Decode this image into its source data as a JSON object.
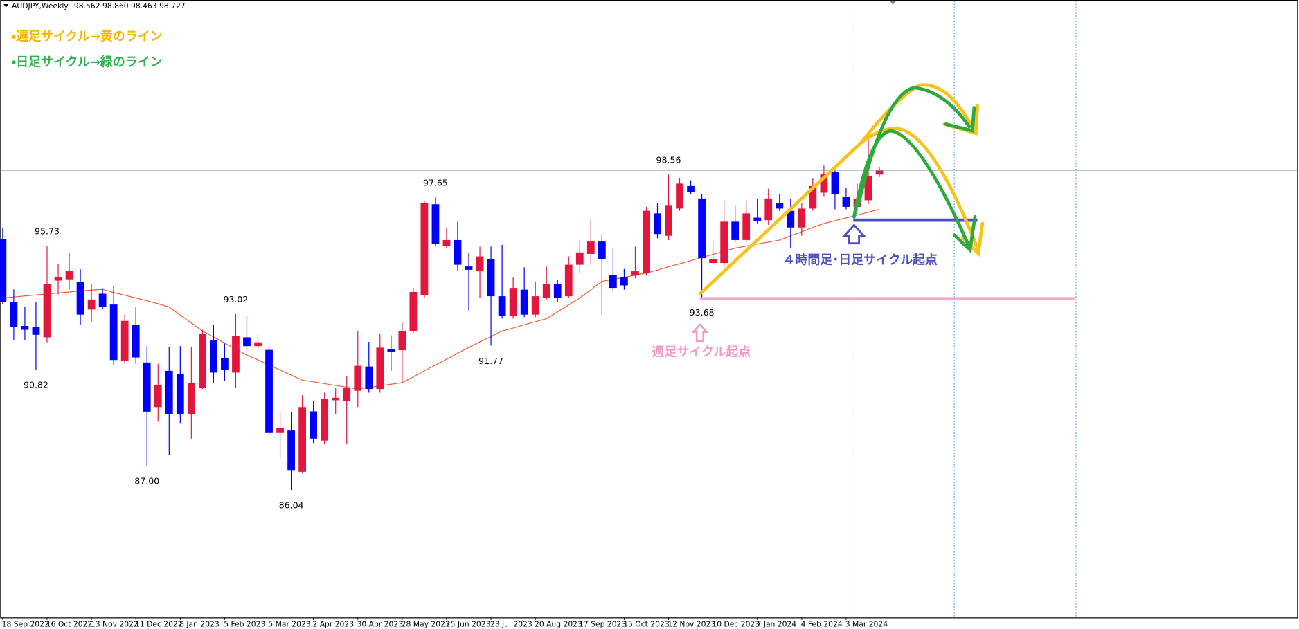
{
  "chart_data": {
    "type": "candlestick",
    "title": "AUDJPY,Weekly",
    "quote_labels": [
      "98.562",
      "98.860",
      "98.463",
      "98.727"
    ],
    "up_color": "#e3173e",
    "down_color": "#0000ff",
    "ylim": [
      80.98,
      105.49
    ],
    "grid": false,
    "categories": [
      "18 Sep 2022",
      null,
      null,
      null,
      "16 Oct 2022",
      null,
      null,
      null,
      "13 Nov 2022",
      null,
      null,
      null,
      "11 Dec 2022",
      null,
      null,
      null,
      "8 Jan 2023",
      null,
      null,
      null,
      "5 Feb 2023",
      null,
      null,
      null,
      "5 Mar 2023",
      null,
      null,
      null,
      "2 Apr 2023",
      null,
      null,
      null,
      "30 Apr 2023",
      null,
      null,
      null,
      "28 May 2023",
      null,
      null,
      null,
      "25 Jun 2023",
      null,
      null,
      null,
      "23 Jul 2023",
      null,
      null,
      null,
      "20 Aug 2023",
      null,
      null,
      null,
      "17 Sep 2023",
      null,
      null,
      null,
      "15 Oct 2023",
      null,
      null,
      null,
      "12 Nov 2023",
      null,
      null,
      null,
      "10 Dec 2023",
      null,
      null,
      null,
      "7 Jan 2024",
      null,
      null,
      null,
      "4 Feb 2024",
      null,
      null,
      null,
      "3 Mar 2024",
      null,
      null,
      null
    ],
    "open": [
      96.0,
      93.5,
      92.55,
      92.5,
      92.1,
      94.35,
      94.4,
      94.3,
      93.2,
      93.83,
      93.4,
      91.15,
      92.6,
      91.1,
      89.33,
      90.77,
      90.65,
      89.06,
      90.1,
      92.0,
      91.27,
      90.7,
      92.1,
      91.75,
      91.6,
      88.3,
      88.4,
      86.76,
      89.16,
      88.0,
      89.6,
      89.56,
      89.98,
      90.94,
      90.05,
      91.62,
      91.59,
      92.35,
      93.76,
      97.38,
      95.73,
      95.96,
      94.91,
      94.72,
      95.21,
      93.73,
      92.94,
      93.99,
      93.0,
      93.66,
      94.22,
      93.73,
      94.98,
      95.41,
      95.9,
      94.58,
      94.49,
      94.55,
      94.65,
      97.02,
      96.13,
      97.21,
      98.1,
      97.61,
      95.05,
      95.05,
      96.69,
      95.96,
      96.85,
      96.75,
      97.44,
      97.12,
      96.46,
      97.21,
      97.84,
      98.66,
      97.67,
      97.28,
      97.54,
      98.562
    ],
    "high": [
      96.46,
      94.0,
      93.3,
      93.5,
      95.73,
      95.0,
      95.45,
      94.8,
      94.2,
      94.05,
      94.15,
      93.0,
      93.3,
      91.75,
      91.05,
      91.7,
      91.75,
      91.7,
      92.4,
      92.58,
      91.85,
      93.02,
      92.95,
      92.2,
      91.75,
      89.13,
      89.13,
      89.8,
      89.56,
      89.9,
      90.1,
      90.54,
      92.35,
      91.92,
      92.25,
      92.18,
      92.68,
      94.06,
      97.5,
      97.65,
      96.46,
      96.69,
      95.47,
      95.7,
      95.7,
      95.77,
      94.49,
      94.88,
      94.32,
      94.91,
      94.39,
      95.31,
      95.96,
      96.79,
      96.2,
      95.64,
      94.81,
      95.7,
      97.28,
      97.44,
      98.56,
      98.43,
      98.33,
      97.77,
      95.96,
      97.54,
      97.35,
      97.51,
      97.61,
      98.0,
      97.77,
      97.61,
      97.44,
      98.43,
      98.92,
      98.72,
      98.04,
      98.2,
      99.97,
      98.86
    ],
    "low": [
      93.4,
      92.0,
      92.0,
      90.82,
      91.9,
      93.8,
      94.0,
      92.6,
      92.7,
      93.2,
      91.0,
      91.05,
      91.05,
      87.0,
      88.75,
      87.42,
      88.67,
      88.08,
      90.05,
      90.3,
      90.38,
      90.1,
      91.5,
      91.6,
      88.2,
      87.3,
      86.04,
      86.7,
      87.9,
      87.85,
      89.06,
      87.85,
      89.33,
      89.9,
      89.9,
      90.77,
      90.28,
      92.28,
      93.66,
      95.7,
      95.64,
      94.72,
      93.17,
      93.66,
      91.77,
      92.84,
      92.84,
      92.9,
      92.9,
      93.6,
      93.5,
      93.66,
      94.65,
      94.98,
      93.0,
      93.93,
      93.99,
      94.45,
      94.55,
      96.03,
      95.96,
      97.12,
      97.77,
      93.68,
      94.98,
      94.91,
      95.87,
      95.87,
      96.62,
      96.56,
      97.12,
      95.64,
      96.13,
      97.12,
      97.7,
      97.18,
      97.18,
      97.12,
      97.38,
      98.463
    ],
    "close": [
      93.5,
      92.5,
      92.4,
      92.2,
      94.2,
      94.5,
      94.75,
      93.0,
      93.6,
      93.3,
      91.2,
      92.75,
      91.3,
      89.15,
      90.2,
      89.06,
      89.06,
      90.3,
      92.25,
      90.7,
      90.8,
      92.15,
      91.75,
      91.9,
      88.3,
      88.5,
      86.83,
      89.33,
      88.08,
      89.66,
      89.7,
      90.1,
      90.97,
      90.05,
      91.69,
      91.53,
      92.35,
      93.9,
      97.44,
      95.8,
      95.96,
      94.98,
      94.78,
      95.31,
      93.73,
      92.94,
      94.06,
      93.0,
      93.73,
      94.22,
      93.66,
      94.98,
      95.47,
      95.9,
      95.21,
      94.06,
      94.16,
      94.72,
      97.12,
      96.2,
      97.35,
      98.2,
      97.87,
      95.24,
      95.21,
      96.69,
      95.96,
      97.02,
      96.72,
      97.61,
      97.21,
      96.46,
      97.21,
      98.1,
      98.59,
      97.77,
      97.28,
      97.61,
      98.49,
      98.727
    ],
    "ma": {
      "color": "#ff4a1c",
      "values": [
        93.66,
        93.7,
        93.74,
        93.78,
        93.82,
        93.86,
        93.9,
        93.94,
        93.97,
        94.0,
        93.88,
        93.77,
        93.66,
        93.55,
        93.43,
        93.3,
        92.98,
        92.67,
        92.35,
        92.11,
        91.87,
        91.63,
        91.4,
        91.2,
        91.0,
        90.8,
        90.6,
        90.4,
        90.33,
        90.26,
        90.19,
        90.12,
        90.05,
        90.11,
        90.17,
        90.24,
        90.3,
        90.53,
        90.77,
        91.0,
        91.23,
        91.47,
        91.7,
        91.92,
        92.13,
        92.35,
        92.47,
        92.6,
        92.72,
        92.84,
        93.11,
        93.39,
        93.66,
        93.99,
        94.32,
        94.4,
        94.48,
        94.57,
        94.65,
        94.77,
        94.9,
        95.02,
        95.14,
        95.27,
        95.39,
        95.52,
        95.64,
        95.72,
        95.8,
        95.88,
        95.96,
        96.13,
        96.29,
        96.46,
        96.62,
        96.73,
        96.84,
        96.95,
        97.07,
        97.18
      ]
    },
    "extremes": [
      {
        "value": 95.73,
        "label": "95.73"
      },
      {
        "value": 90.82,
        "label": "90.82"
      },
      {
        "value": 87,
        "label": "87.00"
      },
      {
        "value": 93.02,
        "label": "93.02"
      },
      {
        "value": 86.04,
        "label": "86.04"
      },
      {
        "value": 97.65,
        "label": "97.65"
      },
      {
        "value": 91.77,
        "label": "91.77"
      },
      {
        "value": 98.56,
        "label": "98.56"
      },
      {
        "value": 93.68,
        "label": "93.68"
      }
    ],
    "notes": {
      "weekly_line": "・週足サイクル→黄のライン",
      "daily_line": "・日足サイクル→緑のライン",
      "h4_start": "４時間足･日足サイクル起点",
      "weekly_start": "週足サイクル起点"
    }
  }
}
